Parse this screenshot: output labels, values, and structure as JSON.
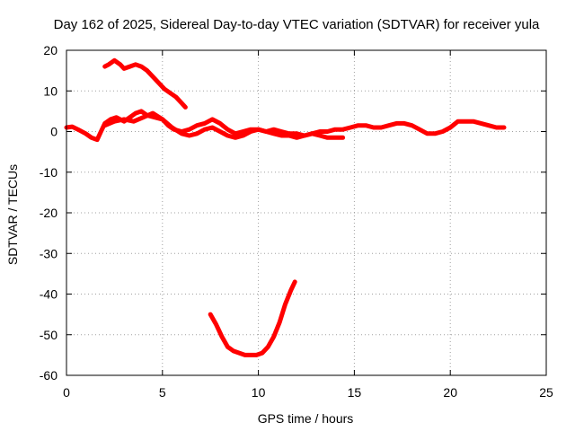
{
  "chart_data": {
    "type": "line",
    "title": "Day 162 of 2025, Sidereal Day-to-day VTEC variation (SDTVAR) for receiver yula",
    "xlabel": "GPS time / hours",
    "ylabel": "SDTVAR / TECUs",
    "xlim": [
      0,
      25
    ],
    "ylim": [
      -60,
      20
    ],
    "xticks": [
      "0",
      "5",
      "10",
      "15",
      "20",
      "25"
    ],
    "yticks": [
      "20",
      "10",
      "0",
      "-10",
      "-20",
      "-30",
      "-40",
      "-50",
      "-60"
    ],
    "grid": true,
    "color": "#ff0000",
    "series": [
      {
        "name": "main-trace",
        "x": [
          0.0,
          0.3,
          0.6,
          1.0,
          1.3,
          1.6,
          1.8,
          2.0,
          2.3,
          2.6,
          3.0,
          3.3,
          3.6,
          3.9,
          4.2,
          4.6,
          5.0,
          5.3,
          5.6,
          6.0,
          6.4,
          6.8,
          7.2,
          7.6,
          8.0,
          8.4,
          8.8,
          9.2,
          9.6,
          10.0,
          10.4,
          10.8,
          11.2,
          11.6,
          12.0,
          12.4,
          12.8,
          13.2,
          13.6,
          14.0,
          14.4,
          14.8,
          15.2,
          15.6,
          16.0,
          16.4,
          16.8,
          17.2,
          17.6,
          18.0,
          18.4,
          18.8,
          19.2,
          19.6,
          20.0,
          20.4,
          20.8,
          21.2,
          21.6,
          22.0,
          22.4,
          22.8
        ],
        "y": [
          1.0,
          1.2,
          0.5,
          -0.5,
          -1.5,
          -2.0,
          0.0,
          2.0,
          3.0,
          3.5,
          2.5,
          3.5,
          4.5,
          5.0,
          4.0,
          3.5,
          3.0,
          1.5,
          0.5,
          0.0,
          0.5,
          1.5,
          2.0,
          3.0,
          2.0,
          0.5,
          -0.5,
          0.0,
          0.5,
          0.5,
          0.0,
          0.5,
          0.0,
          -0.5,
          -0.5,
          -1.0,
          -0.5,
          0.0,
          0.0,
          0.5,
          0.5,
          1.0,
          1.5,
          1.5,
          1.0,
          1.0,
          1.5,
          2.0,
          2.0,
          1.5,
          0.5,
          -0.5,
          -0.5,
          0.0,
          1.0,
          2.5,
          2.5,
          2.5,
          2.0,
          1.5,
          1.0,
          1.0
        ]
      },
      {
        "name": "secondary-trace",
        "x": [
          2.0,
          2.5,
          3.0,
          3.5,
          4.0,
          4.5,
          5.0,
          5.5,
          6.0,
          6.4,
          6.8,
          7.2,
          7.6,
          8.0,
          8.4,
          8.8,
          9.2,
          9.6,
          10.0,
          10.4,
          10.8,
          11.2,
          11.6,
          12.0,
          12.4,
          12.8,
          13.2,
          13.6,
          14.0,
          14.4
        ],
        "y": [
          1.5,
          2.5,
          3.0,
          2.5,
          3.5,
          4.5,
          3.0,
          1.0,
          -0.5,
          -1.0,
          -0.5,
          0.5,
          1.0,
          0.0,
          -1.0,
          -1.5,
          -1.0,
          0.0,
          0.5,
          0.0,
          -0.5,
          -1.0,
          -1.0,
          -1.5,
          -1.0,
          -0.5,
          -1.0,
          -1.5,
          -1.5,
          -1.5
        ]
      },
      {
        "name": "upper-segment",
        "x": [
          2.0,
          2.2,
          2.5,
          2.8,
          3.0,
          3.3,
          3.6,
          3.9,
          4.2,
          4.5,
          4.8,
          5.1,
          5.4,
          5.7,
          6.0,
          6.2
        ],
        "y": [
          16.0,
          16.5,
          17.5,
          16.5,
          15.5,
          16.0,
          16.5,
          16.0,
          15.0,
          13.5,
          12.0,
          10.5,
          9.5,
          8.5,
          7.0,
          6.0
        ]
      },
      {
        "name": "lower-segment",
        "x": [
          7.5,
          7.8,
          8.1,
          8.4,
          8.7,
          9.0,
          9.3,
          9.6,
          9.9,
          10.2,
          10.5,
          10.8,
          11.1,
          11.4,
          11.7,
          11.9
        ],
        "y": [
          -45.0,
          -47.5,
          -50.5,
          -53.0,
          -54.0,
          -54.5,
          -55.0,
          -55.0,
          -55.0,
          -54.5,
          -53.0,
          -50.5,
          -47.0,
          -42.5,
          -39.0,
          -37.0
        ]
      }
    ]
  }
}
